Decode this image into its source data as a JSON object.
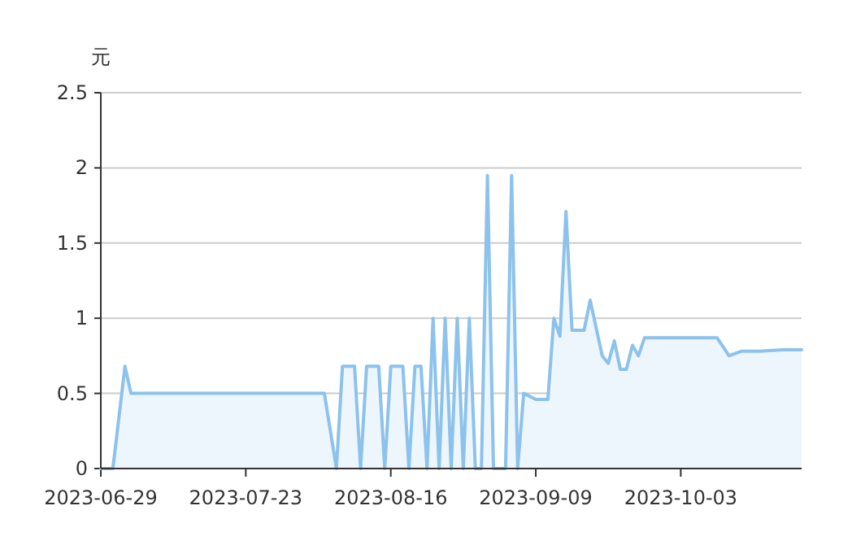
{
  "chart_data": {
    "type": "area",
    "ylabel": "元",
    "x": [
      "2023-06-29",
      "2023-07-01",
      "2023-07-03",
      "2023-07-04",
      "2023-08-05",
      "2023-08-07",
      "2023-08-08",
      "2023-08-10",
      "2023-08-11",
      "2023-08-12",
      "2023-08-14",
      "2023-08-15",
      "2023-08-16",
      "2023-08-18",
      "2023-08-19",
      "2023-08-20",
      "2023-08-21",
      "2023-08-22",
      "2023-08-23",
      "2023-08-24",
      "2023-08-25",
      "2023-08-26",
      "2023-08-27",
      "2023-08-28",
      "2023-08-29",
      "2023-08-30",
      "2023-08-31",
      "2023-09-01",
      "2023-09-02",
      "2023-09-04",
      "2023-09-05",
      "2023-09-06",
      "2023-09-07",
      "2023-09-09",
      "2023-09-11",
      "2023-09-12",
      "2023-09-13",
      "2023-09-14",
      "2023-09-15",
      "2023-09-17",
      "2023-09-18",
      "2023-09-20",
      "2023-09-21",
      "2023-09-22",
      "2023-09-23",
      "2023-09-24",
      "2023-09-25",
      "2023-09-26",
      "2023-09-27",
      "2023-10-09",
      "2023-10-11",
      "2023-10-13",
      "2023-10-16",
      "2023-10-20",
      "2023-10-23"
    ],
    "values": [
      0,
      0,
      0.68,
      0.5,
      0.5,
      0,
      0.68,
      0.68,
      0,
      0.68,
      0.68,
      0,
      0.68,
      0.68,
      0,
      0.68,
      0.68,
      0,
      1.0,
      0,
      1.0,
      0,
      1.0,
      0,
      1.0,
      0,
      0,
      1.95,
      0,
      0,
      1.95,
      0,
      0.5,
      0.46,
      0.46,
      1.0,
      0.88,
      1.71,
      0.92,
      0.92,
      1.12,
      0.75,
      0.7,
      0.85,
      0.66,
      0.66,
      0.82,
      0.75,
      0.87,
      0.87,
      0.75,
      0.78,
      0.78,
      0.79,
      0.79
    ],
    "color": "#8cc2ec",
    "xlim": [
      "2023-06-29",
      "2023-10-23"
    ],
    "xticks": [
      "2023-06-29",
      "2023-07-23",
      "2023-08-16",
      "2023-09-09",
      "2023-10-03"
    ],
    "ylim": [
      0,
      2.5
    ],
    "yticks": [
      0,
      0.5,
      1,
      1.5,
      2,
      2.5
    ],
    "grid": "y"
  }
}
